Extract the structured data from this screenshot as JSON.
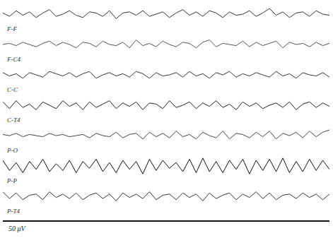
{
  "chart_data": [
    {
      "type": "line",
      "tick_labels": false,
      "grid": false,
      "xlim": [
        0,
        49
      ],
      "ylim": [
        -1,
        1
      ],
      "x": [
        0,
        1,
        2,
        3,
        4,
        5,
        6,
        7,
        8,
        9,
        10,
        11,
        12,
        13,
        14,
        15,
        16,
        17,
        18,
        19,
        20,
        21,
        22,
        23,
        24,
        25,
        26,
        27,
        28,
        29,
        30,
        31,
        32,
        33,
        34,
        35,
        36,
        37,
        38,
        39,
        40,
        41,
        42,
        43,
        44,
        45,
        46,
        47,
        48,
        49
      ],
      "series": [
        {
          "name": "F-F",
          "color": "#333333",
          "values": [
            0.1,
            -0.2,
            0.3,
            -0.1,
            0.2,
            -0.3,
            0.1,
            0.4,
            -0.2,
            0.0,
            0.3,
            -0.1,
            -0.3,
            0.2,
            0.1,
            -0.2,
            0.3,
            -0.4,
            0.1,
            0.2,
            -0.1,
            0.3,
            -0.2,
            0.0,
            0.2,
            -0.3,
            0.1,
            0.4,
            -0.1,
            0.2,
            -0.2,
            0.3,
            0.1,
            -0.3,
            0.2,
            -0.1,
            0.0,
            0.3,
            -0.2,
            0.1,
            0.5,
            -0.1,
            0.2,
            -0.3,
            0.1,
            0.2,
            -0.2,
            0.3,
            0.0,
            -0.1
          ]
        }
      ]
    },
    {
      "type": "line",
      "tick_labels": false,
      "grid": false,
      "xlim": [
        0,
        49
      ],
      "ylim": [
        -1,
        1
      ],
      "x": [
        0,
        1,
        2,
        3,
        4,
        5,
        6,
        7,
        8,
        9,
        10,
        11,
        12,
        13,
        14,
        15,
        16,
        17,
        18,
        19,
        20,
        21,
        22,
        23,
        24,
        25,
        26,
        27,
        28,
        29,
        30,
        31,
        32,
        33,
        34,
        35,
        36,
        37,
        38,
        39,
        40,
        41,
        42,
        43,
        44,
        45,
        46,
        47,
        48,
        49
      ],
      "series": [
        {
          "name": "F-C4",
          "color": "#555555",
          "values": [
            0.0,
            0.1,
            -0.1,
            0.2,
            0.0,
            -0.2,
            0.1,
            0.3,
            -0.1,
            0.2,
            0.0,
            -0.3,
            0.2,
            0.1,
            -0.2,
            0.3,
            0.0,
            -0.1,
            0.2,
            -0.3,
            0.4,
            -0.1,
            0.1,
            -0.2,
            0.3,
            0.0,
            -0.2,
            0.2,
            0.1,
            -0.3,
            0.2,
            0.4,
            -0.2,
            0.1,
            0.0,
            -0.1,
            0.3,
            -0.2,
            0.2,
            -0.1,
            0.1,
            0.3,
            -0.3,
            0.2,
            0.0,
            0.1,
            -0.2,
            0.2,
            -0.1,
            0.1
          ]
        }
      ]
    },
    {
      "type": "line",
      "tick_labels": false,
      "grid": false,
      "xlim": [
        0,
        49
      ],
      "ylim": [
        -1,
        1
      ],
      "x": [
        0,
        1,
        2,
        3,
        4,
        5,
        6,
        7,
        8,
        9,
        10,
        11,
        12,
        13,
        14,
        15,
        16,
        17,
        18,
        19,
        20,
        21,
        22,
        23,
        24,
        25,
        26,
        27,
        28,
        29,
        30,
        31,
        32,
        33,
        34,
        35,
        36,
        37,
        38,
        39,
        40,
        41,
        42,
        43,
        44,
        45,
        46,
        47,
        48,
        49
      ],
      "series": [
        {
          "name": "C-C",
          "color": "#333333",
          "values": [
            0.2,
            -0.1,
            0.1,
            -0.3,
            0.2,
            0.0,
            -0.2,
            0.3,
            0.1,
            -0.1,
            0.2,
            -0.2,
            0.1,
            0.3,
            -0.3,
            0.0,
            0.2,
            -0.1,
            0.1,
            -0.2,
            0.3,
            0.1,
            -0.3,
            0.2,
            -0.1,
            0.0,
            0.2,
            -0.2,
            0.3,
            -0.1,
            0.1,
            -0.3,
            0.2,
            0.0,
            0.3,
            -0.2,
            0.1,
            -0.1,
            0.2,
            0.0,
            -0.2,
            0.3,
            -0.1,
            0.1,
            -0.3,
            0.2,
            0.0,
            -0.1,
            0.2,
            -0.2
          ]
        }
      ]
    },
    {
      "type": "line",
      "tick_labels": false,
      "grid": false,
      "xlim": [
        0,
        49
      ],
      "ylim": [
        -1,
        1
      ],
      "x": [
        0,
        1,
        2,
        3,
        4,
        5,
        6,
        7,
        8,
        9,
        10,
        11,
        12,
        13,
        14,
        15,
        16,
        17,
        18,
        19,
        20,
        21,
        22,
        23,
        24,
        25,
        26,
        27,
        28,
        29,
        30,
        31,
        32,
        33,
        34,
        35,
        36,
        37,
        38,
        39,
        40,
        41,
        42,
        43,
        44,
        45,
        46,
        47,
        48,
        49
      ],
      "series": [
        {
          "name": "C-T4",
          "color": "#222222",
          "values": [
            0.3,
            -0.3,
            0.4,
            -0.2,
            0.1,
            -0.4,
            0.3,
            0.0,
            -0.3,
            0.4,
            -0.1,
            0.2,
            -0.4,
            0.3,
            -0.2,
            0.1,
            0.4,
            -0.3,
            0.2,
            -0.1,
            0.3,
            -0.4,
            0.2,
            0.1,
            -0.3,
            0.4,
            -0.2,
            0.0,
            0.3,
            -0.3,
            0.2,
            -0.1,
            0.4,
            -0.2,
            0.1,
            -0.4,
            0.3,
            -0.1,
            0.2,
            -0.3,
            0.0,
            0.2,
            -0.2,
            0.3,
            -0.4,
            0.1,
            0.3,
            -0.2,
            0.2,
            -0.1
          ]
        }
      ]
    },
    {
      "type": "line",
      "tick_labels": false,
      "grid": false,
      "xlim": [
        0,
        49
      ],
      "ylim": [
        -1,
        1
      ],
      "x": [
        0,
        1,
        2,
        3,
        4,
        5,
        6,
        7,
        8,
        9,
        10,
        11,
        12,
        13,
        14,
        15,
        16,
        17,
        18,
        19,
        20,
        21,
        22,
        23,
        24,
        25,
        26,
        27,
        28,
        29,
        30,
        31,
        32,
        33,
        34,
        35,
        36,
        37,
        38,
        39,
        40,
        41,
        42,
        43,
        44,
        45,
        46,
        47,
        48,
        49
      ],
      "series": [
        {
          "name": "P-O",
          "color": "#444444",
          "values": [
            0.1,
            0.0,
            0.2,
            -0.1,
            0.1,
            0.0,
            -0.1,
            0.2,
            0.0,
            0.1,
            -0.1,
            0.0,
            0.1,
            -0.2,
            0.2,
            0.0,
            -0.1,
            0.3,
            -0.2,
            0.1,
            0.2,
            -0.3,
            0.3,
            -0.1,
            0.2,
            -0.2,
            0.4,
            -0.1,
            0.1,
            -0.3,
            0.3,
            0.0,
            -0.2,
            0.4,
            -0.3,
            0.2,
            0.1,
            -0.2,
            0.3,
            -0.1,
            0.4,
            -0.3,
            0.2,
            0.0,
            0.3,
            -0.2,
            0.4,
            -0.1,
            0.3,
            0.5
          ]
        }
      ]
    },
    {
      "type": "line",
      "tick_labels": false,
      "grid": false,
      "xlim": [
        0,
        49
      ],
      "ylim": [
        -1,
        1
      ],
      "x": [
        0,
        1,
        2,
        3,
        4,
        5,
        6,
        7,
        8,
        9,
        10,
        11,
        12,
        13,
        14,
        15,
        16,
        17,
        18,
        19,
        20,
        21,
        22,
        23,
        24,
        25,
        26,
        27,
        28,
        29,
        30,
        31,
        32,
        33,
        34,
        35,
        36,
        37,
        38,
        39,
        40,
        41,
        42,
        43,
        44,
        45,
        46,
        47,
        48,
        49
      ],
      "series": [
        {
          "name": "P-P",
          "color": "#111111",
          "values": [
            0.5,
            -0.4,
            0.3,
            -0.6,
            0.4,
            -0.3,
            0.6,
            -0.5,
            0.2,
            -0.4,
            0.5,
            -0.6,
            0.4,
            -0.2,
            0.6,
            -0.5,
            0.3,
            -0.6,
            0.5,
            -0.3,
            0.4,
            -0.7,
            0.6,
            -0.4,
            0.5,
            -0.2,
            0.3,
            -0.5,
            0.6,
            -0.6,
            0.7,
            -0.5,
            0.4,
            -0.6,
            0.5,
            -0.3,
            0.6,
            -0.7,
            0.5,
            -0.4,
            0.6,
            -0.5,
            0.7,
            -0.6,
            0.4,
            -0.5,
            0.6,
            -0.4,
            0.5,
            -0.3
          ]
        }
      ]
    },
    {
      "type": "line",
      "tick_labels": false,
      "grid": false,
      "xlim": [
        0,
        49
      ],
      "ylim": [
        -1,
        1
      ],
      "x": [
        0,
        1,
        2,
        3,
        4,
        5,
        6,
        7,
        8,
        9,
        10,
        11,
        12,
        13,
        14,
        15,
        16,
        17,
        18,
        19,
        20,
        21,
        22,
        23,
        24,
        25,
        26,
        27,
        28,
        29,
        30,
        31,
        32,
        33,
        34,
        35,
        36,
        37,
        38,
        39,
        40,
        41,
        42,
        43,
        44,
        45,
        46,
        47,
        48,
        49
      ],
      "series": [
        {
          "name": "P-T4",
          "color": "#333333",
          "values": [
            0.4,
            -0.2,
            0.3,
            -0.3,
            0.1,
            0.2,
            -0.3,
            0.4,
            -0.1,
            0.2,
            -0.2,
            0.3,
            -0.3,
            0.1,
            0.3,
            -0.2,
            0.2,
            -0.4,
            0.3,
            -0.1,
            0.2,
            -0.2,
            0.4,
            -0.3,
            0.1,
            0.2,
            -0.3,
            0.3,
            -0.1,
            0.2,
            -0.4,
            0.3,
            -0.2,
            0.1,
            0.3,
            -0.3,
            0.2,
            -0.1,
            0.4,
            -0.2,
            0.3,
            -0.3,
            0.1,
            0.2,
            -0.2,
            0.3,
            -0.1,
            0.2,
            -0.3,
            0.2
          ]
        }
      ]
    }
  ],
  "calibration": {
    "label": "50 μV"
  }
}
